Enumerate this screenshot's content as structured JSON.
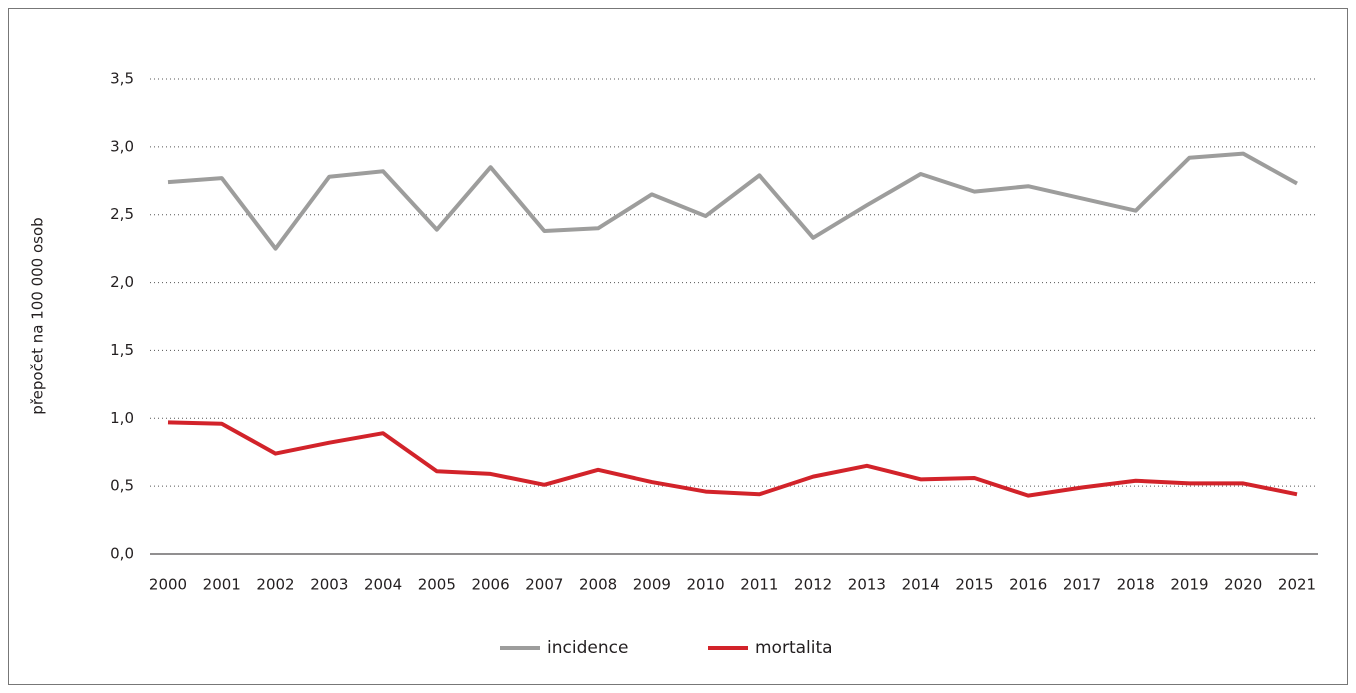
{
  "chart_data": {
    "type": "line",
    "y_label": "přepočet na 100 000 osob",
    "categories": [
      "2000",
      "2001",
      "2002",
      "2003",
      "2004",
      "2005",
      "2006",
      "2007",
      "2008",
      "2009",
      "2010",
      "2011",
      "2012",
      "2013",
      "2014",
      "2015",
      "2016",
      "2017",
      "2018",
      "2019",
      "2020",
      "2021"
    ],
    "series": [
      {
        "name": "incidence",
        "color": "#9d9d9c",
        "values": [
          2.74,
          2.77,
          2.25,
          2.78,
          2.82,
          2.39,
          2.85,
          2.38,
          2.4,
          2.65,
          2.49,
          2.79,
          2.33,
          2.57,
          2.8,
          2.67,
          2.71,
          2.62,
          2.53,
          2.92,
          2.95,
          2.73
        ]
      },
      {
        "name": "mortalita",
        "color": "#d2232a",
        "values": [
          0.97,
          0.96,
          0.74,
          0.82,
          0.89,
          0.61,
          0.59,
          0.51,
          0.62,
          0.53,
          0.46,
          0.44,
          0.57,
          0.65,
          0.55,
          0.56,
          0.43,
          0.49,
          0.54,
          0.52,
          0.52,
          0.44
        ]
      }
    ],
    "ylim": [
      0,
      3.5
    ],
    "yticks": [
      {
        "value": 0,
        "label": "0,0"
      },
      {
        "value": 0.5,
        "label": "0,5"
      },
      {
        "value": 1,
        "label": "1,0"
      },
      {
        "value": 1.5,
        "label": "1,5"
      },
      {
        "value": 2,
        "label": "2,0"
      },
      {
        "value": 2.5,
        "label": "2,5"
      },
      {
        "value": 3,
        "label": "3,0"
      },
      {
        "value": 3.5,
        "label": "3,5"
      }
    ],
    "grid": true,
    "legend": "bottom"
  }
}
